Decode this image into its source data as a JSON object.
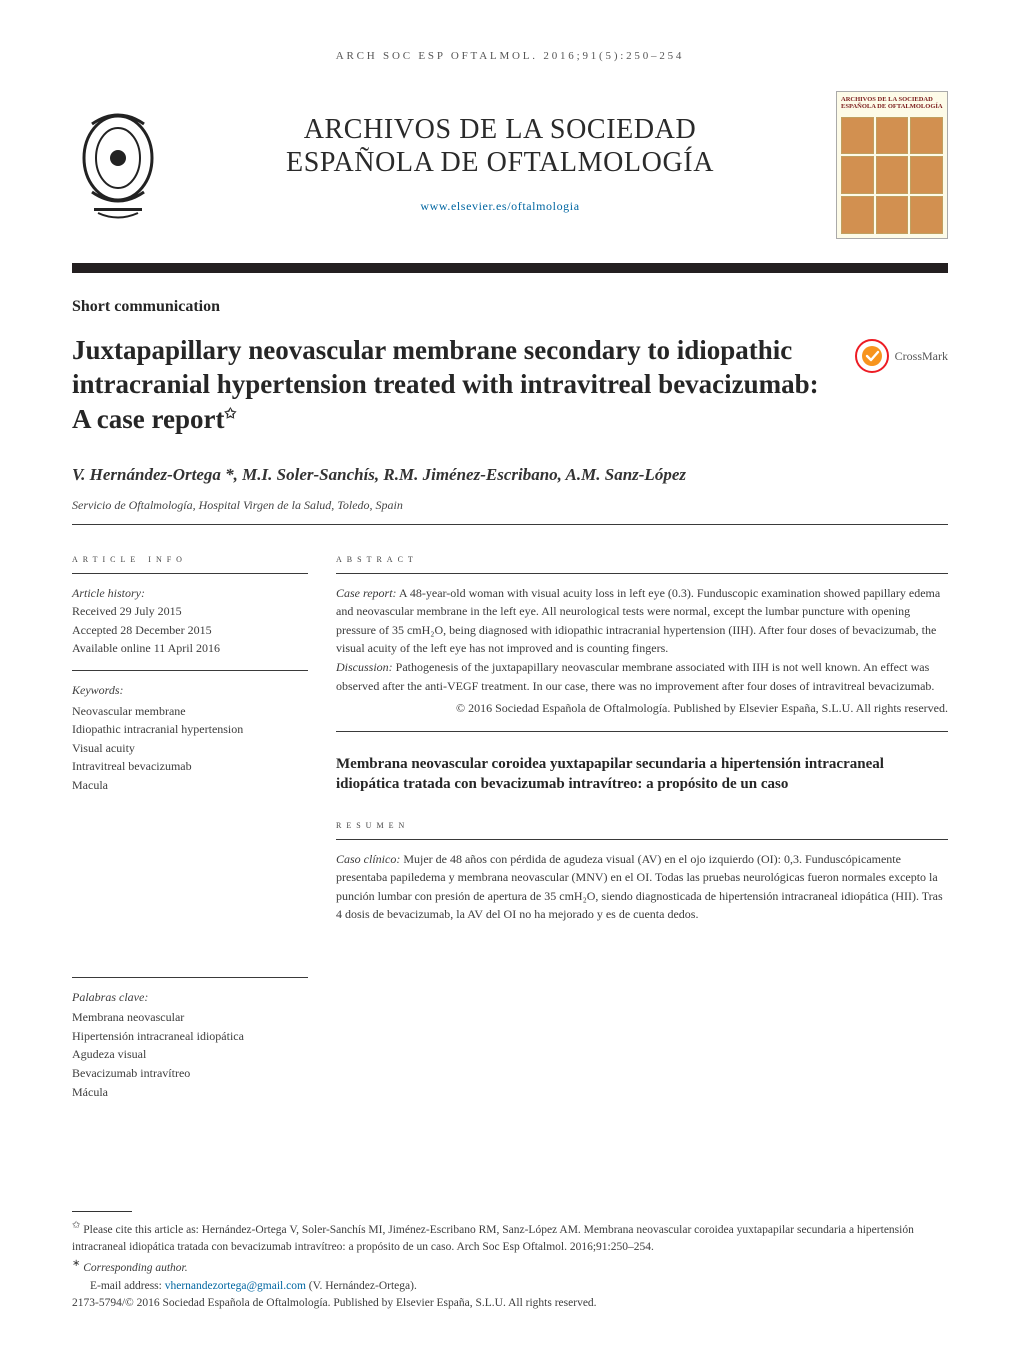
{
  "running_head": "ARCH SOC ESP OFTALMOL. 2016;91(5):250–254",
  "journal": {
    "title_line1": "ARCHIVOS DE LA SOCIEDAD",
    "title_line2": "ESPAÑOLA DE OFTALMOLOGÍA",
    "url": "www.elsevier.es/oftalmologia",
    "cover_label": "ARCHIVOS DE LA SOCIEDAD ESPAÑOLA DE OFTALMOLOGÍA"
  },
  "section_label": "Short communication",
  "article_title": "Juxtapapillary neovascular membrane secondary to idiopathic intracranial hypertension treated with intravitreal bevacizumab: A case report",
  "title_note_glyph": "✩",
  "crossmark_label": "CrossMark",
  "authors_line": "V. Hernández-Ortega *, M.I. Soler-Sanchís, R.M. Jiménez-Escribano, A.M. Sanz-López",
  "affiliation": "Servicio de Oftalmología, Hospital Virgen de la Salud, Toledo, Spain",
  "info": {
    "heading": "article info",
    "history_label": "Article history:",
    "received": "Received 29 July 2015",
    "accepted": "Accepted 28 December 2015",
    "online": "Available online 11 April 2016",
    "keywords_label": "Keywords:",
    "keywords": [
      "Neovascular membrane",
      "Idiopathic intracranial hypertension",
      "Visual acuity",
      "Intravitreal bevacizumab",
      "Macula"
    ],
    "palabras_label": "Palabras clave:",
    "palabras": [
      "Membrana neovascular",
      "Hipertensión intracraneal idiopática",
      "Agudeza visual",
      "Bevacizumab intravítreo",
      "Mácula"
    ]
  },
  "abstract": {
    "heading": "abstract",
    "case_label": "Case report:",
    "case_text": " A 48-year-old woman with visual acuity loss in left eye (0.3). Funduscopic examination showed papillary edema and neovascular membrane in the left eye. All neurological tests were normal, except the lumbar puncture with opening pressure of 35 cmH₂O, being diagnosed with idiopathic intracranial hypertension (IIH). After four doses of bevacizumab, the visual acuity of the left eye has not improved and is counting fingers.",
    "disc_label": "Discussion:",
    "disc_text": " Pathogenesis of the juxtapapillary neovascular membrane associated with IIH is not well known. An effect was observed after the anti-VEGF treatment. In our case, there was no improvement after four doses of intravitreal bevacizumab.",
    "copyright": "© 2016 Sociedad Española de Oftalmología. Published by Elsevier España, S.L.U. All rights reserved."
  },
  "es": {
    "title": "Membrana neovascular coroidea yuxtapapilar secundaria a hipertensión intracraneal idiopática tratada con bevacizumab intravítreo: a propósito de un caso",
    "heading": "resumen",
    "case_label": "Caso clínico:",
    "case_text": " Mujer de 48 años con pérdida de agudeza visual (AV) en el ojo izquierdo (OI): 0,3. Funduscópicamente presentaba papiledema y membrana neovascular (MNV) en el OI. Todas las pruebas neurológicas fueron normales excepto la punción lumbar con presión de apertura de 35 cmH₂O, siendo diagnosticada de hipertensión intracraneal idiopática (HII). Tras 4 dosis de bevacizumab, la AV del OI no ha mejorado y es de cuenta dedos."
  },
  "footnotes": {
    "cite": "Please cite this article as: Hernández-Ortega V, Soler-Sanchís MI, Jiménez-Escribano RM, Sanz-López AM. Membrana neovascular coroidea yuxtapapilar secundaria a hipertensión intracraneal idiopática tratada con bevacizumab intravítreo: a propósito de un caso. Arch Soc Esp Oftalmol. 2016;91:250–254.",
    "corr_label": "Corresponding author.",
    "email_label": "E-mail address: ",
    "email": "vhernandezortega@gmail.com",
    "email_paren": " (V. Hernández-Ortega).",
    "issn": "2173-5794/© 2016 Sociedad Española de Oftalmología. Published by Elsevier España, S.L.U. All rights reserved."
  },
  "colors": {
    "link": "#0066a1",
    "text": "#3c3c3c",
    "rule": "#231f20",
    "crossmark_outer": "#ed1c24",
    "crossmark_inner": "#f7941e"
  }
}
